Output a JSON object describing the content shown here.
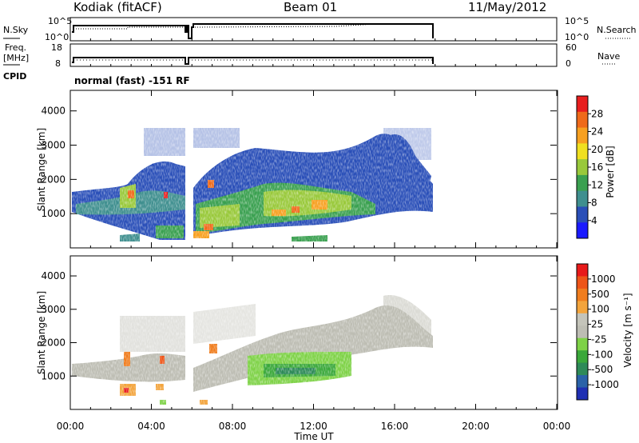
{
  "header": {
    "station": "Kodiak (fitACF)",
    "beam": "Beam 01",
    "date": "11/May/2012"
  },
  "strip_labels": {
    "nsky": "N.Sky",
    "freq": "Freq.",
    "freq_unit": "[MHz]",
    "cpid": "CPID",
    "nsearch": "N.Search",
    "nave": "Nave",
    "nsky_ticks": [
      "10^5",
      "10^0"
    ],
    "freq_ticks": [
      "18",
      "8"
    ],
    "nave_ticks": [
      "60",
      "0"
    ],
    "cpid_text": "normal (fast) -151 RF"
  },
  "chart_data": [
    {
      "type": "heatmap",
      "name": "power",
      "ylabel": "Slant Range [km]",
      "yticks": [
        "1000",
        "2000",
        "3000",
        "4000"
      ],
      "ylim": [
        0,
        4600
      ],
      "colorbar_label": "Power [dB]",
      "colorbar_ticks": [
        "4",
        "8",
        "12",
        "16",
        "20",
        "24",
        "28"
      ],
      "colors": [
        "#1a1aff",
        "#2a4fb8",
        "#3f8f8f",
        "#3aa050",
        "#99c93b",
        "#f0e020",
        "#f7a020",
        "#ef6a1a",
        "#e81e1e"
      ]
    },
    {
      "type": "heatmap",
      "name": "velocity",
      "ylabel": "Slant Range [km]",
      "yticks": [
        "1000",
        "2000",
        "3000",
        "4000"
      ],
      "ylim": [
        0,
        4600
      ],
      "colorbar_label": "Velocity [m s⁻¹]",
      "colorbar_ticks": [
        "1000",
        "500",
        "100",
        "25",
        "-25",
        "-100",
        "-500",
        "-1000"
      ],
      "colors": [
        "#1f2fb3",
        "#2a62a8",
        "#2e8a58",
        "#3aa83a",
        "#7ed247",
        "#bdbdb3",
        "#c4c4ba",
        "#f3a43c",
        "#f07d1e",
        "#ee5518",
        "#e81a1a"
      ]
    }
  ],
  "x_axis": {
    "label": "Time UT",
    "ticks": [
      "00:00",
      "04:00",
      "08:00",
      "12:00",
      "16:00",
      "20:00",
      "00:00"
    ]
  }
}
